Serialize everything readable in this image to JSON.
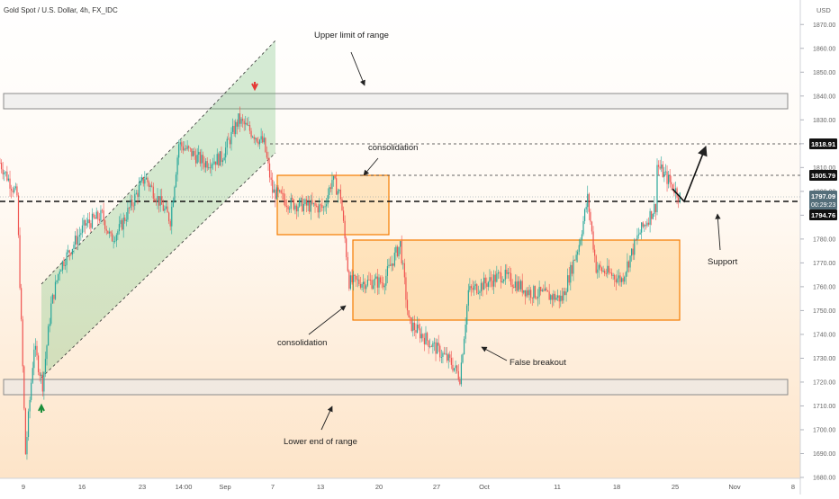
{
  "header": {
    "symbol_title": "Gold Spot / U.S. Dollar, 4h, FX_IDC",
    "currency": "USD"
  },
  "price_labels": {
    "target": "1818.91",
    "resistance": "1805.79",
    "current": "1797.09",
    "countdown": "00:29:23",
    "support": "1794.76"
  },
  "annotations": {
    "upper_limit": "Upper limit of range",
    "consolidation_top": "consolidation",
    "consolidation_bottom": "consolidation",
    "false_breakout": "False breakout",
    "support": "Support",
    "lower_end": "Lower end of range"
  },
  "colors": {
    "bull": "#26a69a",
    "bear": "#ef5350",
    "channel": "#66bb6a",
    "box": "#f57c00",
    "range_zone": "#9e9e9e",
    "bg_bottom": "#fde4c8"
  },
  "chart_data": {
    "type": "candlestick",
    "title": "Gold Spot / U.S. Dollar, 4h, FX_IDC",
    "y_axis": {
      "unit": "USD",
      "range": [
        1680,
        1875
      ],
      "ticks": [
        1680,
        1690,
        1700,
        1710,
        1720,
        1730,
        1740,
        1750,
        1760,
        1770,
        1780,
        1790,
        1800,
        1810,
        1820,
        1830,
        1840,
        1850,
        1860,
        1870
      ]
    },
    "x_axis": {
      "labels": [
        "9",
        "16",
        "23",
        "14:00",
        "Sep",
        "7",
        "13",
        "20",
        "27",
        "Oct",
        "11",
        "18",
        "25",
        "Nov",
        "8"
      ]
    },
    "price_path": [
      [
        "2021-08-06",
        1812
      ],
      [
        "2021-08-08",
        1798
      ],
      [
        "2021-08-09",
        1690
      ],
      [
        "2021-08-10",
        1735
      ],
      [
        "2021-08-11",
        1719
      ],
      [
        "2021-08-12",
        1752
      ],
      [
        "2021-08-13",
        1768
      ],
      [
        "2021-08-16",
        1786
      ],
      [
        "2021-08-18",
        1790
      ],
      [
        "2021-08-19",
        1780
      ],
      [
        "2021-08-20",
        1784
      ],
      [
        "2021-08-23",
        1806
      ],
      [
        "2021-08-24",
        1800
      ],
      [
        "2021-08-26",
        1788
      ],
      [
        "2021-08-27",
        1820
      ],
      [
        "2021-08-30",
        1812
      ],
      [
        "2021-09-01",
        1814
      ],
      [
        "2021-09-03",
        1830
      ],
      [
        "2021-09-06",
        1820
      ],
      [
        "2021-09-07",
        1800
      ],
      [
        "2021-09-09",
        1795
      ],
      [
        "2021-09-13",
        1793
      ],
      [
        "2021-09-14",
        1805
      ],
      [
        "2021-09-15",
        1798
      ],
      [
        "2021-09-16",
        1762
      ],
      [
        "2021-09-20",
        1762
      ],
      [
        "2021-09-22",
        1778
      ],
      [
        "2021-09-23",
        1745
      ],
      [
        "2021-09-28",
        1728
      ],
      [
        "2021-09-29",
        1722
      ],
      [
        "2021-09-30",
        1758
      ],
      [
        "2021-10-04",
        1765
      ],
      [
        "2021-10-07",
        1758
      ],
      [
        "2021-10-11",
        1755
      ],
      [
        "2021-10-13",
        1778
      ],
      [
        "2021-10-14",
        1797
      ],
      [
        "2021-10-15",
        1768
      ],
      [
        "2021-10-18",
        1763
      ],
      [
        "2021-10-20",
        1782
      ],
      [
        "2021-10-22",
        1794
      ],
      [
        "2021-10-22",
        1812
      ],
      [
        "2021-10-25",
        1797
      ]
    ],
    "levels": {
      "upper_range_zone": [
        1835,
        1839
      ],
      "lower_range_zone": [
        1715,
        1719
      ],
      "target_line": 1818.91,
      "resistance_line": 1805.79,
      "support_line": 1794.76,
      "current_price": 1797.09
    },
    "zones": {
      "ascending_channel": {
        "from": "2021-08-10",
        "to": "2021-09-06",
        "lower_start": 1719,
        "lower_end": 1813,
        "upper_start": 1762,
        "upper_end": 1863
      },
      "consolidation_box_1": {
        "from": "2021-09-07",
        "to": "2021-09-18",
        "top": 1806,
        "bottom": 1781
      },
      "consolidation_box_2": {
        "from": "2021-09-16",
        "to": "2021-10-26",
        "top": 1779,
        "bottom": 1746
      }
    },
    "markers": {
      "buy_arrow": "2021-08-11",
      "sell_arrow": "2021-09-03"
    },
    "projection": {
      "from": 1797,
      "to": 1818.9,
      "direction": "up"
    }
  }
}
